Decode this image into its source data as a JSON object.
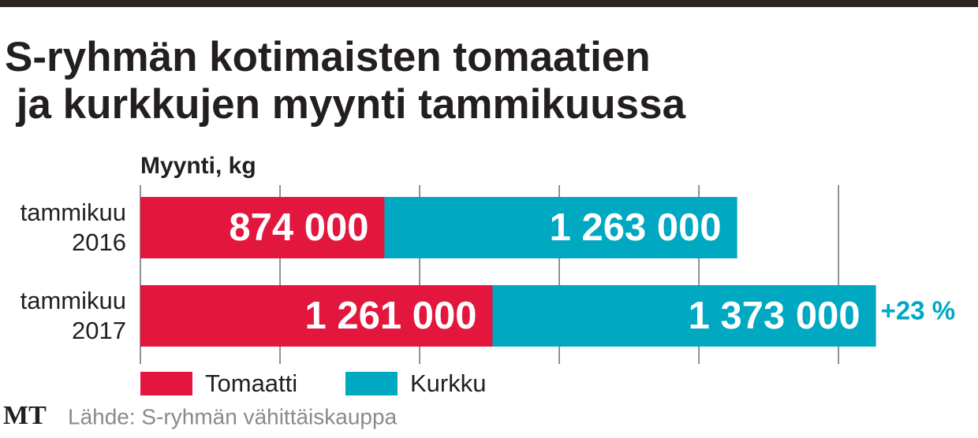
{
  "chart_data": {
    "type": "stacked-barh",
    "title": "S-ryhmän kotimaisten tomaatien ja kurkkujen myynti tammikuussa",
    "xlabel": "Myynti, kg",
    "categories": [
      "tammikuu 2016",
      "tammikuu 2017"
    ],
    "series": [
      {
        "name": "Tomaatti",
        "color": "#e3173e",
        "values": [
          874000,
          1261000
        ],
        "value_labels": [
          "874 000",
          "1 261 000"
        ]
      },
      {
        "name": "Kurkku",
        "color": "#00a8c2",
        "values": [
          1263000,
          1373000
        ],
        "value_labels": [
          "1 263 000",
          "1 373 000"
        ]
      }
    ],
    "annotation": "+23 %",
    "xlim": [
      0,
      2700000
    ],
    "xticks": [
      0,
      500000,
      1000000,
      1500000,
      2000000,
      2500000
    ],
    "grid": true,
    "source": "Lähde: S-ryhmän vähittäiskauppa",
    "logo": "MT"
  }
}
